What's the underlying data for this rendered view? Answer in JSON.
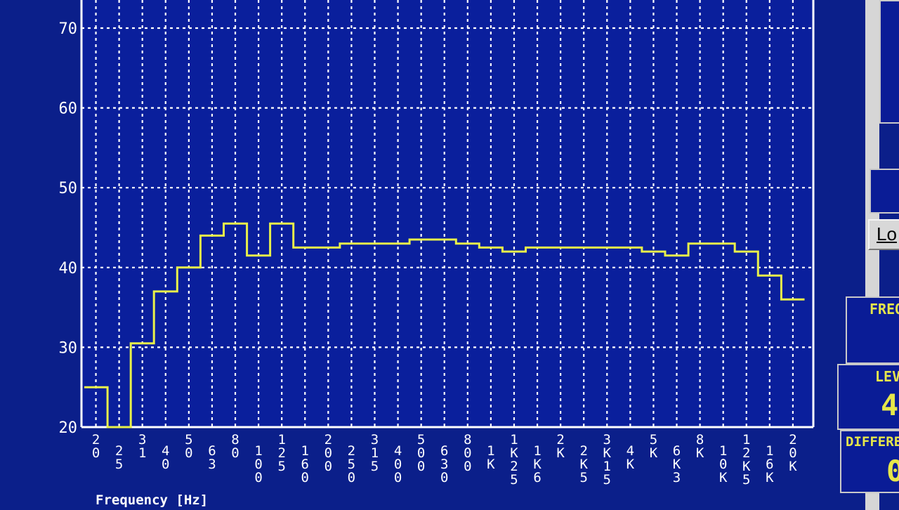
{
  "chart_data": {
    "type": "line",
    "step": true,
    "xlabel": "Frequency [Hz]",
    "ylabel": "",
    "ylim": [
      20,
      70
    ],
    "yticks": [
      20,
      30,
      40,
      50,
      60,
      70
    ],
    "ytick_labels": [
      "20",
      "30",
      "40",
      "50",
      "60",
      "70"
    ],
    "grid": true,
    "categories": [
      "20",
      "25",
      "31",
      "40",
      "50",
      "63",
      "80",
      "100",
      "125",
      "160",
      "200",
      "250",
      "315",
      "400",
      "500",
      "630",
      "800",
      "1K",
      "1K25",
      "1K6",
      "2K",
      "2K5",
      "3K15",
      "4K",
      "5K",
      "6K3",
      "8K",
      "10K",
      "12K5",
      "16K",
      "20K"
    ],
    "series": [
      {
        "values": [
          25,
          20,
          30.5,
          37,
          40,
          44,
          45.5,
          41.5,
          45.5,
          42.5,
          42.5,
          43,
          43,
          43,
          43.5,
          43.5,
          43,
          42.5,
          42,
          42.5,
          42.5,
          42.5,
          42.5,
          42.5,
          42,
          41.5,
          43,
          43,
          42,
          39,
          36
        ]
      }
    ]
  },
  "side_panels": {
    "frequency_label": "FREQ",
    "level_label": "LEV",
    "level_value": "4",
    "difference_label": "DIFFERE",
    "difference_value": "0",
    "load_button_label": "Lo"
  },
  "colors": {
    "background": "#0b1f8a",
    "plot": "#0a1f9c",
    "grid": "#ffffff",
    "trace": "#e8f04a",
    "text": "#ffffff"
  }
}
